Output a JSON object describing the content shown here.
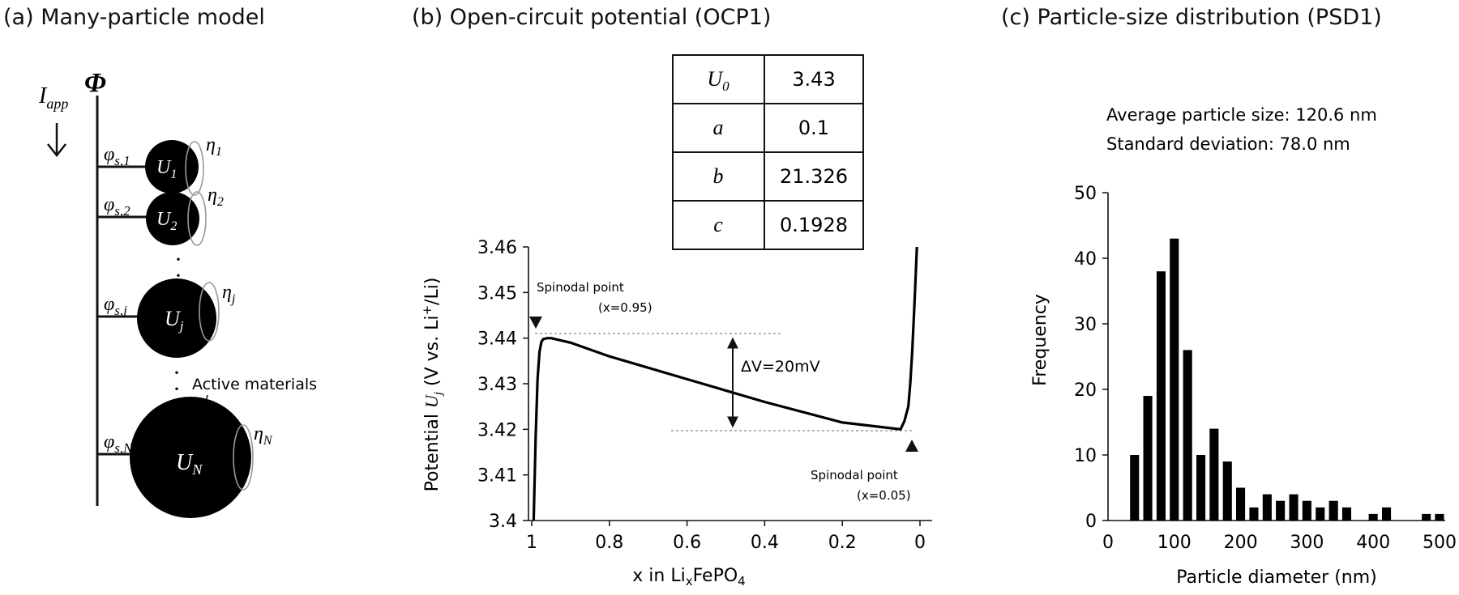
{
  "panel_a": {
    "title": "(a) Many-particle model",
    "potential_symbol": "Φ",
    "current_symbol": "I",
    "current_sub": "app",
    "dots": "·",
    "active_label": "Active materials",
    "particles": [
      {
        "phi": "φ",
        "phi_sub": "s,1",
        "U": "U",
        "U_sub": "1",
        "eta": "η",
        "eta_sub": "1"
      },
      {
        "phi": "φ",
        "phi_sub": "s,2",
        "U": "U",
        "U_sub": "2",
        "eta": "η",
        "eta_sub": "2"
      },
      {
        "phi": "φ",
        "phi_sub": "s,j",
        "U": "U",
        "U_sub": "j",
        "eta": "η",
        "eta_sub": "j"
      },
      {
        "phi": "φ",
        "phi_sub": "s,N",
        "U": "U",
        "U_sub": "N",
        "eta": "η",
        "eta_sub": "N"
      }
    ]
  },
  "panel_b": {
    "title": "(b) Open-circuit potential (OCP1)",
    "param_table": [
      {
        "symbol": "U",
        "symbol_sub": "0",
        "value": "3.43"
      },
      {
        "symbol": "a",
        "symbol_sub": "",
        "value": "0.1"
      },
      {
        "symbol": "b",
        "symbol_sub": "",
        "value": "21.326"
      },
      {
        "symbol": "c",
        "symbol_sub": "",
        "value": "0.1928"
      }
    ],
    "ylabel": {
      "pre": "Potential ",
      "U": "U",
      "U_sub": "j",
      "mid": " (V vs. Li",
      "sup": "+",
      "post": "/Li)"
    },
    "xlabel": {
      "pre": "x in Li",
      "sub": "x",
      "post": "FePO",
      "sub2": "4"
    },
    "annotations": {
      "spinodal_left_1": "Spinodal point",
      "spinodal_left_2": "(x=0.95)",
      "spinodal_right_1": "Spinodal point",
      "spinodal_right_2": "(x=0.05)",
      "delta_v": "ΔV=20mV"
    }
  },
  "panel_c": {
    "title": "(c) Particle-size distribution (PSD1)",
    "stat_avg": "Average particle size: 120.6 nm",
    "stat_sd": "Standard deviation: 78.0 nm"
  },
  "chart_data": [
    {
      "type": "line",
      "title": "",
      "xlabel": "x in LixFePO4",
      "ylabel": "Potential Uj (V vs. Li+/Li)",
      "xlim": [
        1,
        0
      ],
      "ylim": [
        3.4,
        3.46
      ],
      "x_ticks": [
        1,
        0.8,
        0.6,
        0.4,
        0.2,
        0
      ],
      "x_tick_labels": [
        "1",
        "0.8",
        "0.6",
        "0.4",
        "0.2",
        "0"
      ],
      "y_ticks": [
        3.4,
        3.41,
        3.42,
        3.43,
        3.44,
        3.45,
        3.46
      ],
      "y_tick_labels": [
        "3.4",
        "3.41",
        "3.42",
        "3.43",
        "3.44",
        "3.45",
        "3.46"
      ],
      "x_reversed": true,
      "series": [
        {
          "x": [
            0.995,
            0.99,
            0.985,
            0.98,
            0.975,
            0.97,
            0.96,
            0.95,
            0.9,
            0.8,
            0.6,
            0.4,
            0.2,
            0.1,
            0.05,
            0.04,
            0.03,
            0.025,
            0.02,
            0.015,
            0.012,
            0.008
          ],
          "y": [
            3.4,
            3.418,
            3.431,
            3.437,
            3.4392,
            3.4398,
            3.44,
            3.44,
            3.439,
            3.436,
            3.431,
            3.426,
            3.4215,
            3.4205,
            3.42,
            3.4218,
            3.425,
            3.43,
            3.437,
            3.446,
            3.452,
            3.46
          ]
        }
      ]
    },
    {
      "type": "bar",
      "title": "",
      "xlabel": "Particle diameter (nm)",
      "ylabel": "Frequency",
      "xlim": [
        0,
        500
      ],
      "ylim": [
        0,
        50
      ],
      "x_ticks": [
        0,
        100,
        200,
        300,
        400,
        500
      ],
      "x_tick_labels": [
        "0",
        "100",
        "200",
        "300",
        "400",
        "500"
      ],
      "y_ticks": [
        0,
        10,
        20,
        30,
        40,
        50
      ],
      "y_tick_labels": [
        "0",
        "10",
        "20",
        "30",
        "40",
        "50"
      ],
      "bin_width": 20,
      "categories": [
        40,
        60,
        80,
        100,
        120,
        140,
        160,
        180,
        200,
        220,
        240,
        260,
        280,
        300,
        320,
        340,
        360,
        380,
        400,
        420,
        480,
        500
      ],
      "values": [
        10,
        19,
        38,
        43,
        26,
        10,
        14,
        9,
        5,
        2,
        4,
        3,
        4,
        3,
        2,
        3,
        2,
        0,
        1,
        2,
        1,
        1
      ]
    }
  ]
}
